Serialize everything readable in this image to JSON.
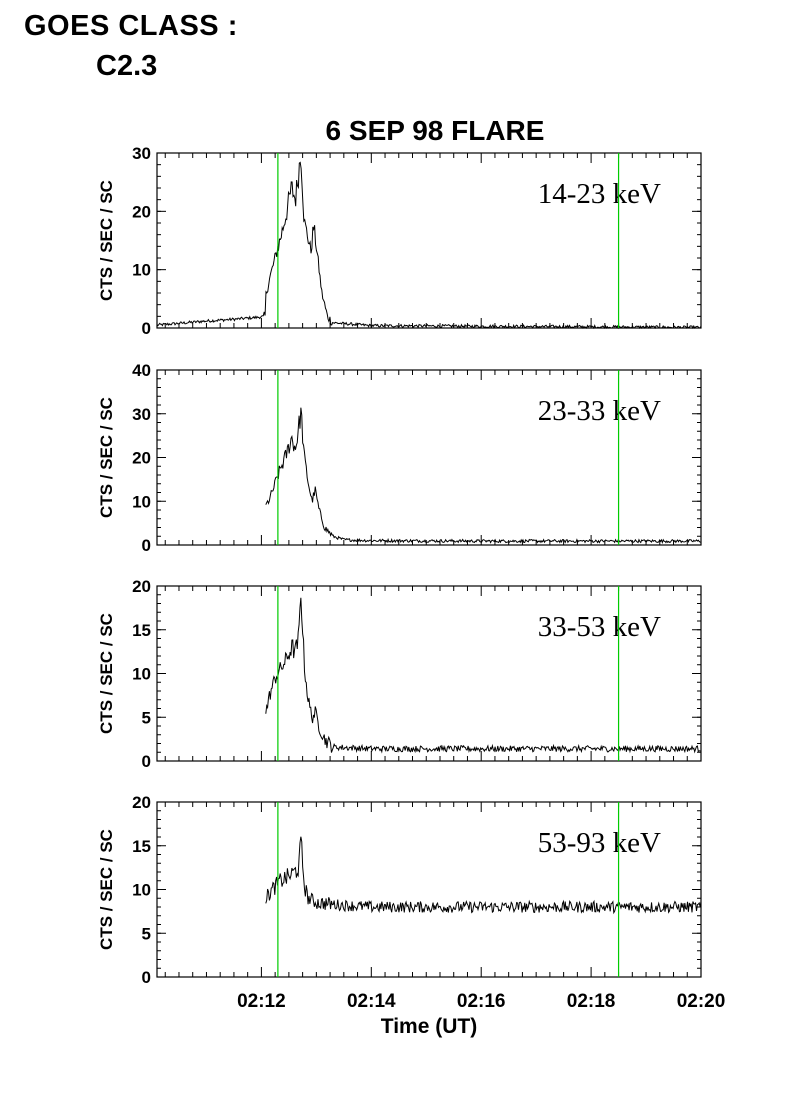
{
  "header": {
    "goes_label": "GOES CLASS :",
    "goes_value": "C2.3"
  },
  "chart_data": {
    "type": "line",
    "title": "6 SEP 98 FLARE",
    "xlabel": "Time (UT)",
    "x_unit": "minutes after 02:00 UT",
    "xlim": [
      10.1,
      20.0
    ],
    "x_ticks": [
      12,
      14,
      16,
      18,
      20
    ],
    "x_tick_labels": [
      "02:12",
      "02:14",
      "02:16",
      "02:18",
      "02:20"
    ],
    "vertical_markers_x": [
      12.3,
      18.5
    ],
    "colors": {
      "line": "#000000",
      "marker": "#00cc00",
      "axis": "#000000"
    },
    "panels": [
      {
        "band": "14-23 keV",
        "ylabel": "CTS / SEC / SC",
        "ylim": [
          0,
          30
        ],
        "yticks": [
          0,
          10,
          20,
          30
        ],
        "data_start": 10.1,
        "series": [
          [
            10.1,
            0.5
          ],
          [
            10.5,
            0.8
          ],
          [
            11.0,
            1.2
          ],
          [
            11.5,
            1.5
          ],
          [
            11.9,
            1.8
          ],
          [
            12.07,
            2.0
          ],
          [
            12.08,
            5.5
          ],
          [
            12.15,
            8.5
          ],
          [
            12.25,
            12.0
          ],
          [
            12.35,
            15.5
          ],
          [
            12.45,
            19.5
          ],
          [
            12.55,
            24.0
          ],
          [
            12.62,
            22.0
          ],
          [
            12.68,
            27.0
          ],
          [
            12.72,
            30.0
          ],
          [
            12.78,
            18.0
          ],
          [
            12.85,
            15.5
          ],
          [
            12.9,
            13.0
          ],
          [
            12.95,
            17.5
          ],
          [
            13.0,
            14.0
          ],
          [
            13.1,
            6.0
          ],
          [
            13.2,
            2.0
          ],
          [
            13.3,
            0.9
          ],
          [
            14.0,
            0.4
          ],
          [
            16.0,
            0.3
          ],
          [
            18.0,
            0.2
          ],
          [
            20.0,
            0.1
          ]
        ]
      },
      {
        "band": "23-33 keV",
        "ylabel": "CTS / SEC / SC",
        "ylim": [
          0,
          40
        ],
        "yticks": [
          0,
          10,
          20,
          30,
          40
        ],
        "data_start": 12.08,
        "series": [
          [
            12.08,
            9.0
          ],
          [
            12.15,
            10.5
          ],
          [
            12.25,
            14.0
          ],
          [
            12.35,
            17.5
          ],
          [
            12.45,
            20.5
          ],
          [
            12.55,
            24.5
          ],
          [
            12.62,
            22.0
          ],
          [
            12.68,
            27.0
          ],
          [
            12.72,
            30.5
          ],
          [
            12.78,
            20.0
          ],
          [
            12.85,
            14.5
          ],
          [
            12.92,
            10.0
          ],
          [
            12.98,
            12.5
          ],
          [
            13.05,
            8.0
          ],
          [
            13.15,
            4.0
          ],
          [
            13.3,
            2.0
          ],
          [
            13.5,
            1.2
          ],
          [
            14.0,
            1.0
          ],
          [
            16.0,
            0.9
          ],
          [
            18.0,
            0.9
          ],
          [
            20.0,
            0.9
          ]
        ]
      },
      {
        "band": "33-53 keV",
        "ylabel": "CTS / SEC / SC",
        "ylim": [
          0,
          20
        ],
        "yticks": [
          0,
          5,
          10,
          15,
          20
        ],
        "data_start": 12.08,
        "series": [
          [
            12.08,
            5.5
          ],
          [
            12.15,
            7.5
          ],
          [
            12.25,
            9.5
          ],
          [
            12.35,
            10.5
          ],
          [
            12.45,
            11.5
          ],
          [
            12.55,
            13.0
          ],
          [
            12.62,
            12.5
          ],
          [
            12.68,
            14.0
          ],
          [
            12.72,
            19.5
          ],
          [
            12.78,
            11.0
          ],
          [
            12.85,
            7.0
          ],
          [
            12.92,
            5.0
          ],
          [
            12.98,
            5.5
          ],
          [
            13.05,
            4.0
          ],
          [
            13.15,
            2.5
          ],
          [
            13.3,
            1.6
          ],
          [
            14.0,
            1.4
          ],
          [
            16.0,
            1.4
          ],
          [
            18.0,
            1.4
          ],
          [
            20.0,
            1.4
          ]
        ]
      },
      {
        "band": "53-93 keV",
        "ylabel": "CTS / SEC / SC",
        "ylim": [
          0,
          20
        ],
        "yticks": [
          0,
          5,
          10,
          15,
          20
        ],
        "data_start": 12.08,
        "series": [
          [
            12.08,
            9.0
          ],
          [
            12.2,
            10.0
          ],
          [
            12.35,
            11.0
          ],
          [
            12.5,
            11.5
          ],
          [
            12.6,
            12.0
          ],
          [
            12.68,
            12.5
          ],
          [
            12.72,
            15.5
          ],
          [
            12.78,
            10.5
          ],
          [
            12.85,
            9.0
          ],
          [
            13.0,
            8.5
          ],
          [
            13.5,
            8.2
          ],
          [
            14.0,
            8.0
          ],
          [
            16.0,
            8.0
          ],
          [
            18.0,
            8.0
          ],
          [
            20.0,
            8.0
          ]
        ]
      }
    ]
  }
}
